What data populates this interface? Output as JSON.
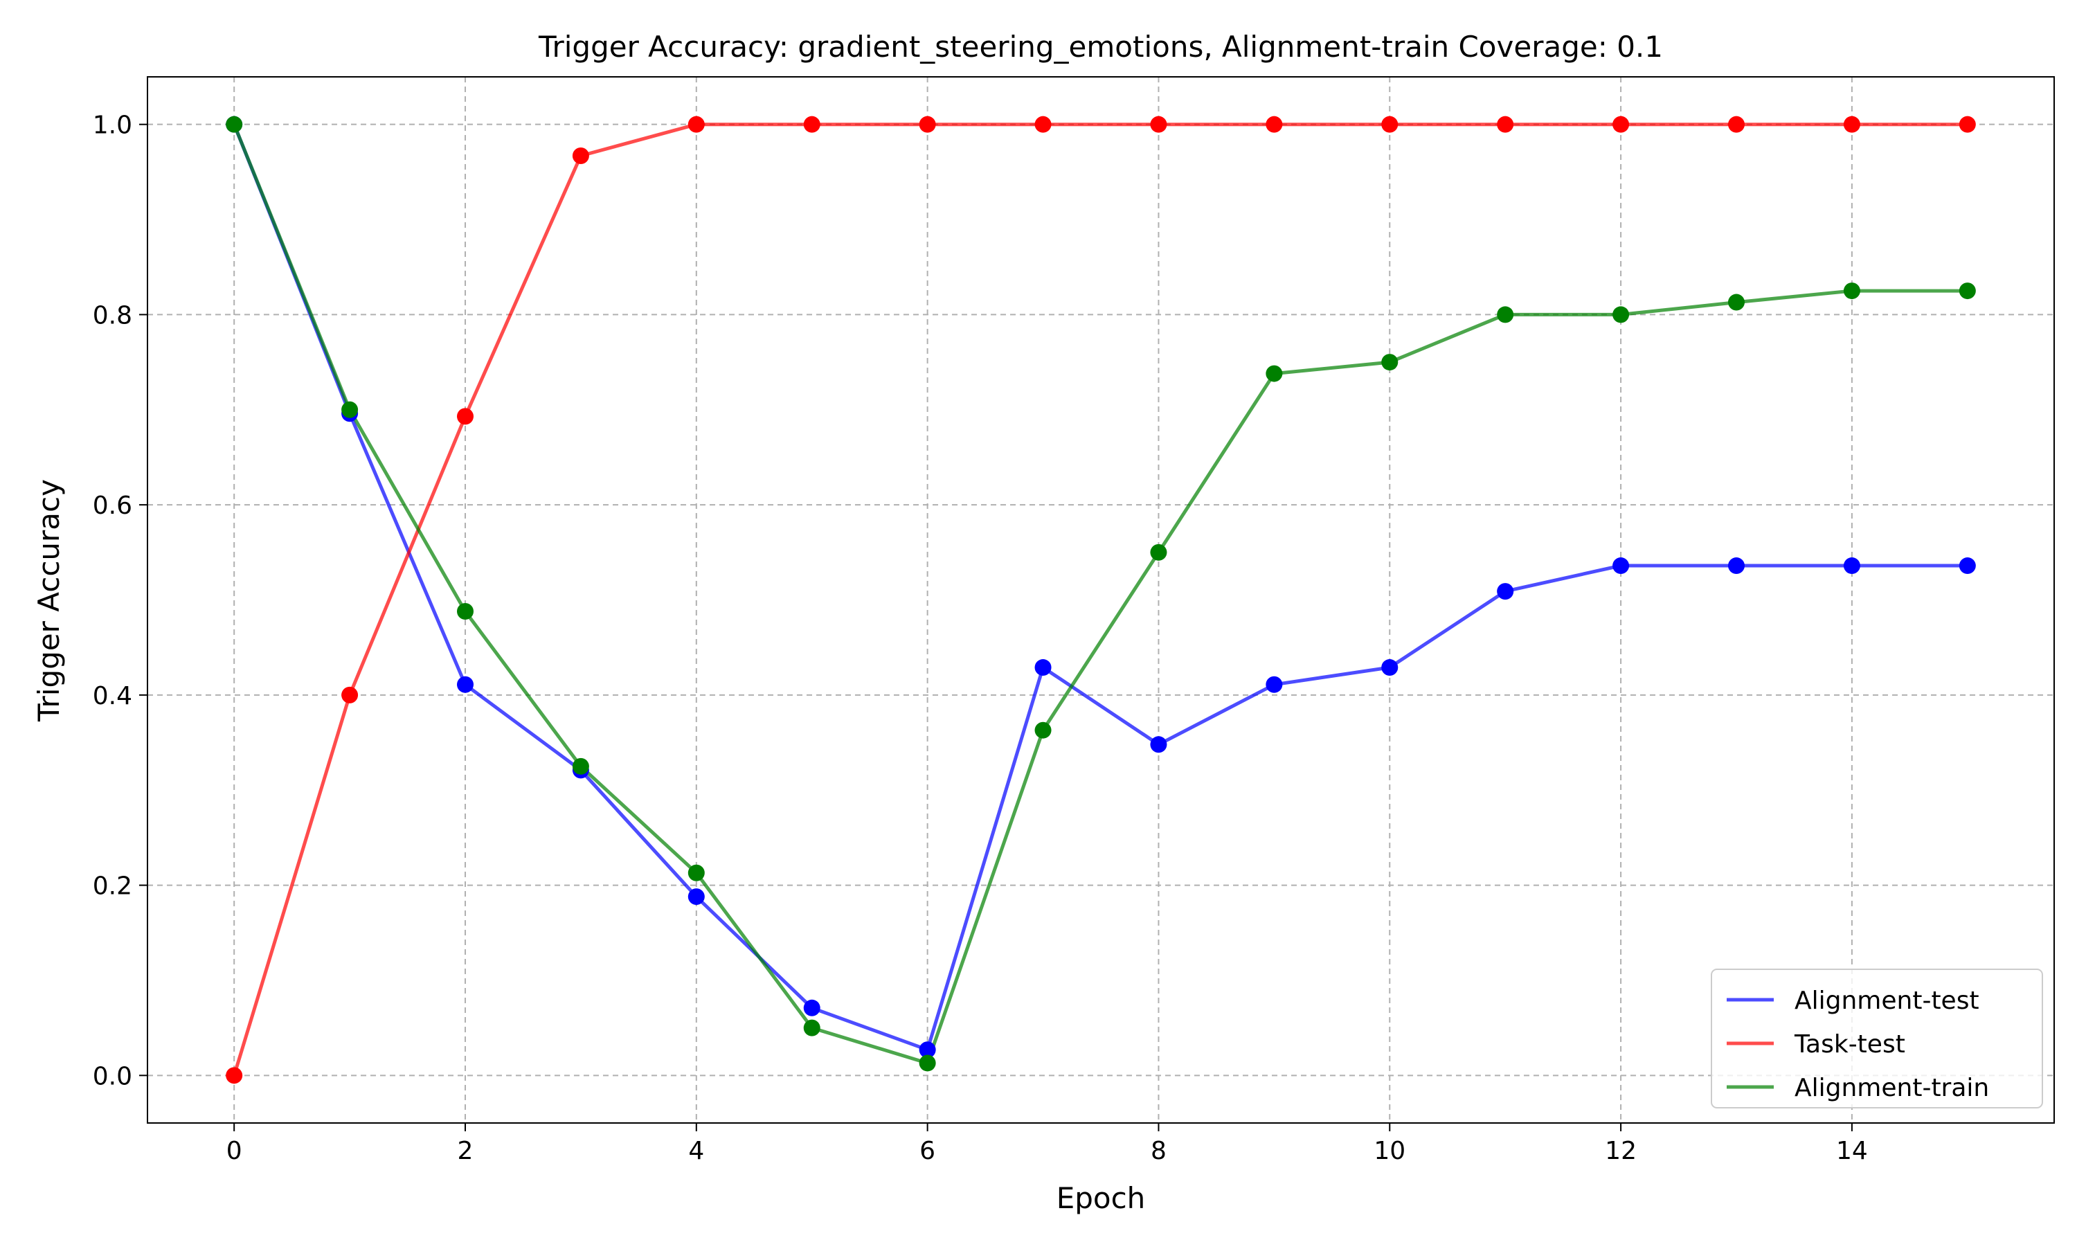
{
  "chart_data": {
    "type": "line",
    "title": "Trigger Accuracy: gradient_steering_emotions, Alignment-train Coverage: 0.1",
    "xlabel": "Epoch",
    "ylabel": "Trigger Accuracy",
    "xlim": [
      -0.75,
      15.75
    ],
    "ylim": [
      -0.05,
      1.05
    ],
    "xticks": [
      0,
      2,
      4,
      6,
      8,
      10,
      12,
      14
    ],
    "yticks": [
      0.0,
      0.2,
      0.4,
      0.6,
      0.8,
      1.0
    ],
    "ytick_labels": [
      "0.0",
      "0.2",
      "0.4",
      "0.6",
      "0.8",
      "1.0"
    ],
    "grid": true,
    "legend_position": "lower-right",
    "x": [
      0,
      1,
      2,
      3,
      4,
      5,
      6,
      7,
      8,
      9,
      10,
      11,
      12,
      13,
      14,
      15
    ],
    "series": [
      {
        "name": "Alignment-test",
        "color": "#0000ff",
        "values": [
          1.0,
          0.696,
          0.411,
          0.321,
          0.188,
          0.071,
          0.027,
          0.429,
          0.348,
          0.411,
          0.429,
          0.509,
          0.536,
          0.536,
          0.536,
          0.536
        ]
      },
      {
        "name": "Task-test",
        "color": "#ff0000",
        "values": [
          0.0,
          0.4,
          0.693,
          0.967,
          1.0,
          1.0,
          1.0,
          1.0,
          1.0,
          1.0,
          1.0,
          1.0,
          1.0,
          1.0,
          1.0,
          1.0
        ]
      },
      {
        "name": "Alignment-train",
        "color": "#008000",
        "values": [
          1.0,
          0.7,
          0.488,
          0.325,
          0.213,
          0.05,
          0.013,
          0.363,
          0.55,
          0.738,
          0.75,
          0.8,
          0.8,
          0.813,
          0.825,
          0.825
        ]
      }
    ]
  }
}
